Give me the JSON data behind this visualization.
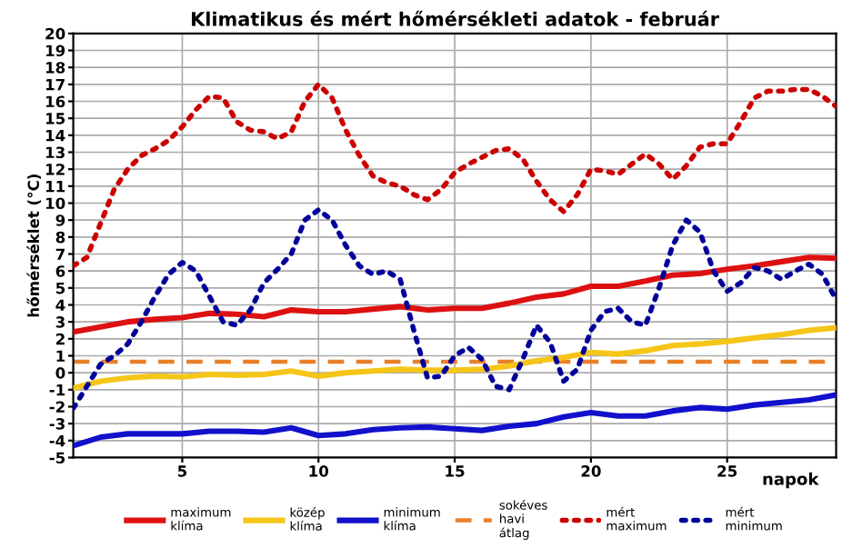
{
  "chart_data": {
    "type": "line",
    "title": "Klimatikus és mért hőmérsékleti adatok - február",
    "xlabel": "napok",
    "ylabel": "hőmérséklet (°C)",
    "x": [
      1,
      2,
      3,
      4,
      5,
      6,
      7,
      8,
      9,
      10,
      11,
      12,
      13,
      14,
      15,
      16,
      17,
      18,
      19,
      20,
      21,
      22,
      23,
      24,
      25,
      26,
      27,
      28,
      29
    ],
    "series": [
      {
        "name": "maximum\nklíma",
        "color": "#dd1111",
        "line_style": "solid",
        "values": [
          2.4,
          2.7,
          3.0,
          3.15,
          3.25,
          3.5,
          3.45,
          3.3,
          3.7,
          3.6,
          3.6,
          3.75,
          3.9,
          3.7,
          3.8,
          3.8,
          4.1,
          4.45,
          4.65,
          5.1,
          5.1,
          5.4,
          5.75,
          5.85,
          6.1,
          6.3,
          6.55,
          6.8,
          6.75
        ]
      },
      {
        "name": "közép\nklíma",
        "color": "#f5c518",
        "line_style": "solid",
        "values": [
          -0.9,
          -0.5,
          -0.3,
          -0.2,
          -0.25,
          -0.1,
          -0.15,
          -0.1,
          0.1,
          -0.2,
          0.0,
          0.1,
          0.2,
          0.15,
          0.15,
          0.2,
          0.4,
          0.7,
          0.9,
          1.2,
          1.1,
          1.3,
          1.6,
          1.7,
          1.85,
          2.05,
          2.25,
          2.5,
          2.65
        ]
      },
      {
        "name": "minimum\nklíma",
        "color": "#1111cc",
        "line_style": "solid",
        "values": [
          -4.3,
          -3.8,
          -3.6,
          -3.6,
          -3.6,
          -3.45,
          -3.45,
          -3.5,
          -3.25,
          -3.7,
          -3.6,
          -3.35,
          -3.25,
          -3.2,
          -3.3,
          -3.4,
          -3.15,
          -3.0,
          -2.6,
          -2.35,
          -2.55,
          -2.55,
          -2.25,
          -2.05,
          -2.15,
          -1.9,
          -1.75,
          -1.6,
          -1.3
        ]
      },
      {
        "name": "mért\nmaximum",
        "color": "#cc0000",
        "line_style": "dotted",
        "x": [
          1,
          1.5,
          2,
          2.5,
          3,
          3.5,
          4,
          4.5,
          5,
          5.5,
          6,
          6.5,
          7,
          7.5,
          8,
          8.5,
          9,
          9.5,
          10,
          10.5,
          11,
          11.5,
          12,
          12.5,
          13,
          13.5,
          14,
          14.5,
          15,
          15.5,
          16,
          16.5,
          17,
          17.5,
          18,
          18.5,
          19,
          19.5,
          20,
          20.5,
          21,
          21.5,
          22,
          22.5,
          23,
          23.5,
          24,
          24.5,
          25,
          25.5,
          26,
          26.5,
          27,
          27.5,
          28,
          28.5,
          29
        ],
        "values": [
          6.3,
          6.8,
          8.8,
          10.8,
          12.0,
          12.8,
          13.2,
          13.7,
          14.5,
          15.5,
          16.3,
          16.2,
          14.8,
          14.3,
          14.2,
          13.8,
          14.2,
          16.0,
          17.0,
          16.2,
          14.3,
          12.8,
          11.6,
          11.2,
          11.0,
          10.5,
          10.2,
          10.8,
          11.8,
          12.3,
          12.7,
          13.1,
          13.2,
          12.6,
          11.3,
          10.2,
          9.5,
          10.5,
          12.0,
          11.9,
          11.7,
          12.3,
          12.9,
          12.3,
          11.4,
          12.2,
          13.3,
          13.5,
          13.5,
          14.8,
          16.2,
          16.6,
          16.6,
          16.7,
          16.7,
          16.3,
          15.7
        ]
      },
      {
        "name": "mért\nminimum",
        "color": "#000099",
        "line_style": "dotted",
        "x": [
          1,
          1.5,
          2,
          2.5,
          3,
          3.5,
          4,
          4.5,
          5,
          5.5,
          6,
          6.5,
          7,
          7.5,
          8,
          8.5,
          9,
          9.5,
          10,
          10.5,
          11,
          11.5,
          12,
          12.5,
          13,
          13.5,
          14,
          14.5,
          15,
          15.5,
          16,
          16.5,
          17,
          17.5,
          18,
          18.5,
          19,
          19.5,
          20,
          20.5,
          21,
          21.5,
          22,
          22.5,
          23,
          23.5,
          24,
          24.5,
          25,
          25.5,
          26,
          26.5,
          27,
          27.5,
          28,
          28.5,
          29
        ],
        "values": [
          -2.1,
          -0.8,
          0.5,
          1.0,
          1.7,
          3.0,
          4.5,
          5.8,
          6.5,
          6.0,
          4.5,
          3.0,
          2.8,
          3.7,
          5.3,
          6.1,
          7.0,
          9.0,
          9.6,
          9.0,
          7.5,
          6.3,
          5.8,
          6.0,
          5.5,
          2.5,
          -0.3,
          -0.2,
          1.0,
          1.5,
          0.8,
          -0.8,
          -1.0,
          0.8,
          2.8,
          1.8,
          -0.5,
          0.2,
          2.5,
          3.6,
          3.8,
          3.0,
          2.8,
          5.0,
          7.5,
          9.0,
          8.3,
          6.0,
          4.8,
          5.3,
          6.2,
          6.0,
          5.5,
          6.0,
          6.4,
          5.8,
          4.3
        ]
      }
    ],
    "ref_lines": [
      {
        "axis": "y",
        "value": 0.65,
        "label": "sokéves\nhavi\nátlag",
        "color": "#e8802a",
        "line_style": "dashed"
      }
    ],
    "xlim": [
      1,
      29
    ],
    "xticks": [
      5,
      10,
      15,
      20,
      25
    ],
    "ylim": [
      -5,
      20
    ],
    "yticks": [
      -5,
      -4,
      -3,
      -2,
      -1,
      0,
      1,
      2,
      3,
      4,
      5,
      6,
      7,
      8,
      9,
      10,
      11,
      12,
      13,
      14,
      15,
      16,
      17,
      18,
      19,
      20
    ],
    "grid": true,
    "legend": "bottom"
  }
}
